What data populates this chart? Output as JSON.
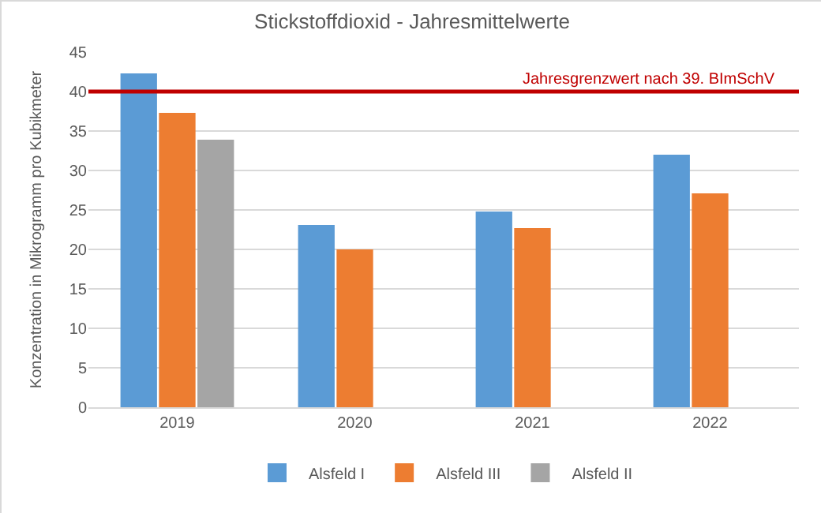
{
  "chart_data": {
    "type": "bar",
    "title": "Stickstoffdioxid - Jahresmittelwerte",
    "ylabel": "Konzentration in Mikrogramm pro Kubikmeter",
    "categories": [
      "2019",
      "2020",
      "2021",
      "2022"
    ],
    "series": [
      {
        "name": "Alsfeld I",
        "color": "#5b9bd5",
        "values": [
          42.3,
          23.1,
          24.8,
          32.0
        ]
      },
      {
        "name": "Alsfeld III",
        "color": "#ed7d31",
        "values": [
          37.3,
          20.0,
          22.7,
          27.1
        ]
      },
      {
        "name": "Alsfeld II",
        "color": "#a5a5a5",
        "values": [
          33.9,
          null,
          null,
          null
        ]
      }
    ],
    "ylim": [
      0,
      45
    ],
    "yticks": [
      0,
      5,
      10,
      15,
      20,
      25,
      30,
      35,
      40,
      45
    ],
    "grid": "y",
    "legend": "bottom",
    "ref_lines": [
      {
        "axis": "y",
        "value": 40,
        "label": "Jahresgrenzwert nach 39. BImSchV",
        "color": "#c00000"
      }
    ]
  }
}
